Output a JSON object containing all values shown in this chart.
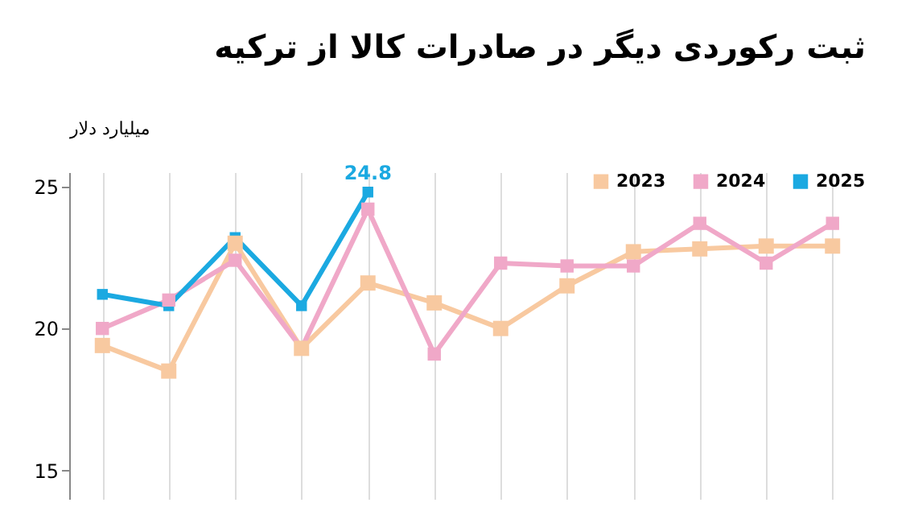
{
  "chart_data": {
    "type": "line",
    "title": "ثبت رکوردی دیگر در صادرات کالا از ترکیه",
    "ylabel": "میلیارد دلار",
    "categories": [
      null,
      null,
      null,
      null,
      null,
      null,
      null,
      null,
      null,
      null,
      null,
      null
    ],
    "series": [
      {
        "name": "2023",
        "color": "#f8c9a0",
        "values": [
          19.4,
          18.5,
          23.0,
          19.3,
          21.6,
          20.9,
          20.0,
          21.5,
          22.7,
          22.8,
          22.9,
          22.9
        ]
      },
      {
        "name": "2024",
        "color": "#f0a8c8",
        "values": [
          20.0,
          21.0,
          22.4,
          19.3,
          24.2,
          19.1,
          22.3,
          22.2,
          22.2,
          23.7,
          22.3,
          23.7
        ]
      },
      {
        "name": "2025",
        "color": "#1ba9e1",
        "values": [
          21.2,
          20.8,
          23.2,
          20.8,
          24.8,
          null,
          null,
          null,
          null,
          null,
          null,
          null
        ],
        "value_labels": [
          null,
          null,
          null,
          null,
          "24.8",
          null,
          null,
          null,
          null,
          null,
          null,
          null
        ]
      }
    ],
    "ylim": [
      14,
      25.5
    ],
    "yticks": [
      15,
      20,
      25
    ],
    "grid": "x",
    "legend": "top right",
    "marker": "square",
    "line_style": "solid",
    "tick_labels": "y"
  }
}
